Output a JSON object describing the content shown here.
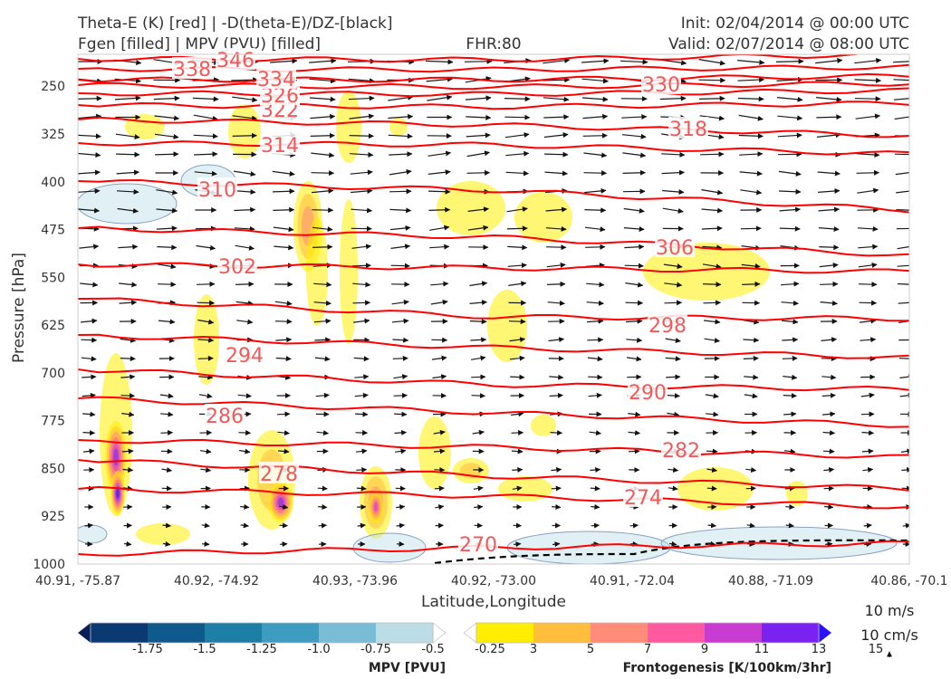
{
  "header": {
    "title_left_1": "Theta-E (K) [red] | -D(theta-E)/DZ-[black]",
    "title_left_2": "Fgen [filled] | MPV (PVU) [filled]",
    "title_center": "FHR:80",
    "title_right_1": "Init: 02/04/2014 @ 00:00 UTC",
    "title_right_2": "Valid: 02/07/2014 @ 08:00 UTC"
  },
  "chart_data": {
    "type": "contour",
    "xlabel": "Latitude,Longitude",
    "ylabel": "Pressure [hPa]",
    "x_ticks": [
      "40.91, -75.87",
      "40.92, -74.92",
      "40.93, -73.96",
      "40.92, -73.00",
      "40.91, -72.04",
      "40.88, -71.09",
      "40.86, -70.1"
    ],
    "y_ticks": [
      "250",
      "325",
      "400",
      "475",
      "550",
      "625",
      "700",
      "775",
      "850",
      "925",
      "1000"
    ],
    "ylim": [
      1000,
      200
    ],
    "theta_e_contours": [
      {
        "label": "270",
        "level": 270
      },
      {
        "label": "274",
        "level": 274
      },
      {
        "label": "278",
        "level": 278
      },
      {
        "label": "282",
        "level": 282
      },
      {
        "label": "286",
        "level": 286
      },
      {
        "label": "290",
        "level": 290
      },
      {
        "label": "294",
        "level": 294
      },
      {
        "label": "298",
        "level": 298
      },
      {
        "label": "302",
        "level": 302
      },
      {
        "label": "306",
        "level": 306
      },
      {
        "label": "310",
        "level": 310
      },
      {
        "label": "314",
        "level": 314
      },
      {
        "label": "318",
        "level": 318
      },
      {
        "label": "322",
        "level": 322
      },
      {
        "label": "326",
        "level": 326
      },
      {
        "label": "330",
        "level": 330
      },
      {
        "label": "334",
        "level": 334
      },
      {
        "label": "338",
        "level": 338
      },
      {
        "label": "346",
        "level": 346
      }
    ],
    "theta_e_color": "#ff0000",
    "label_color": "#f05a5a",
    "vector_scale_labels": [
      "10 m/s",
      "10 cm/s"
    ],
    "mpv_colorbar": {
      "title": "MPV [PVU]",
      "tick_labels": [
        "-1.75",
        "-1.5",
        "-1.25",
        "-1.0",
        "-0.75",
        "-0.5",
        "-0.25"
      ],
      "colors": [
        "#08205a",
        "#0b3a72",
        "#0f5a8c",
        "#1d7fa6",
        "#3e9cc0",
        "#79bcd6",
        "#bcdde6",
        "#ffffff"
      ]
    },
    "fgen_colorbar": {
      "title": "Frontogenesis [K/100km/3hr]",
      "tick_labels": [
        "3",
        "5",
        "7",
        "9",
        "11",
        "13",
        "15"
      ],
      "colors": [
        "#ffffff",
        "#ffee00",
        "#ffbe3c",
        "#ff8c78",
        "#ff5aa0",
        "#c83cd2",
        "#7a22f0",
        "#2b10ff"
      ]
    }
  }
}
